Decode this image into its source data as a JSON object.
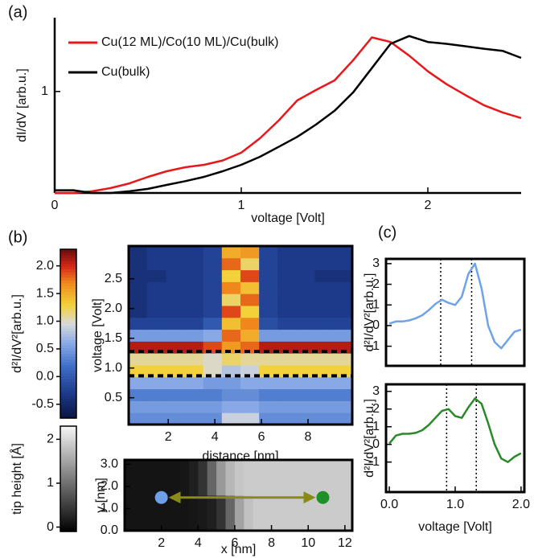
{
  "chart_data": [
    {
      "type": "line",
      "label": "(a)",
      "x_label": "voltage [Volt]",
      "y_label": "dI/dV [arb.u.]",
      "y_scale": "log",
      "x": [
        0,
        0.1,
        0.2,
        0.3,
        0.4,
        0.5,
        0.6,
        0.7,
        0.8,
        0.9,
        1.0,
        1.1,
        1.2,
        1.3,
        1.4,
        1.5,
        1.6,
        1.7,
        1.8,
        1.9,
        2.0,
        2.1,
        2.2,
        2.3,
        2.4,
        2.5
      ],
      "series": [
        {
          "name": "Cu(12 ML)/Co(10 ML)/Cu(bulk)",
          "color": "#e8171b",
          "values": [
            0.3,
            0.3,
            0.306,
            0.318,
            0.336,
            0.363,
            0.388,
            0.407,
            0.419,
            0.441,
            0.484,
            0.574,
            0.708,
            0.899,
            1.017,
            1.14,
            1.45,
            1.9,
            1.8,
            1.53,
            1.27,
            1.09,
            0.96,
            0.85,
            0.78,
            0.73
          ]
        },
        {
          "name": "Cu(bulk)",
          "color": "#000000",
          "values": [
            0.31,
            0.31,
            0.3,
            0.3,
            0.306,
            0.315,
            0.33,
            0.345,
            0.363,
            0.388,
            0.419,
            0.461,
            0.518,
            0.584,
            0.675,
            0.795,
            0.99,
            1.32,
            1.76,
            1.93,
            1.8,
            1.76,
            1.71,
            1.66,
            1.62,
            1.49
          ]
        }
      ],
      "xlim": [
        0,
        2.5
      ],
      "ylim": [
        0.3,
        2.4
      ],
      "xticks": [
        0,
        1,
        2
      ],
      "yticks": [
        1
      ],
      "legend": "upper left"
    },
    {
      "type": "heatmap",
      "label": "(b)",
      "x_label": "distance [nm]",
      "y_label": "voltage [Volt]",
      "x": [
        0.7,
        1.5,
        2.3,
        3.1,
        3.9,
        4.7,
        5.5,
        6.3,
        7.1,
        7.9,
        8.7,
        9.5
      ],
      "y": [
        0.15,
        0.35,
        0.55,
        0.75,
        0.95,
        1.15,
        1.35,
        1.55,
        1.75,
        1.95,
        2.15,
        2.35,
        2.55,
        2.75,
        2.95
      ],
      "z": [
        [
          0.4,
          0.4,
          0.4,
          0.4,
          0.4,
          0.9,
          0.9,
          0.4,
          0.4,
          0.4,
          0.4,
          0.4
        ],
        [
          0.5,
          0.5,
          0.5,
          0.5,
          0.5,
          0.6,
          0.6,
          0.5,
          0.5,
          0.5,
          0.5,
          0.5
        ],
        [
          0.3,
          0.3,
          0.3,
          0.3,
          0.3,
          0.4,
          0.4,
          0.3,
          0.3,
          0.3,
          0.3,
          0.3
        ],
        [
          0.6,
          0.6,
          0.6,
          0.6,
          0.5,
          0.5,
          0.6,
          0.6,
          0.6,
          0.6,
          0.6,
          0.6
        ],
        [
          1.3,
          1.3,
          1.3,
          1.3,
          1.0,
          0.8,
          0.9,
          1.3,
          1.3,
          1.3,
          1.3,
          1.3
        ],
        [
          1.1,
          1.1,
          1.1,
          1.1,
          1.0,
          1.2,
          1.1,
          1.1,
          1.1,
          1.1,
          1.1,
          1.1
        ],
        [
          2.1,
          2.1,
          2.1,
          2.1,
          1.9,
          1.6,
          1.8,
          2.1,
          2.1,
          2.1,
          2.1,
          2.1
        ],
        [
          0.5,
          0.5,
          0.5,
          0.5,
          0.6,
          1.8,
          1.5,
          0.5,
          0.5,
          0.5,
          0.5,
          0.5
        ],
        [
          -0.2,
          -0.2,
          -0.2,
          -0.2,
          0.0,
          1.4,
          1.7,
          -0.1,
          -0.2,
          -0.2,
          -0.2,
          -0.2
        ],
        [
          -0.4,
          -0.3,
          -0.3,
          -0.3,
          -0.2,
          1.9,
          1.3,
          -0.2,
          -0.3,
          -0.3,
          -0.3,
          -0.3
        ],
        [
          -0.4,
          -0.3,
          -0.3,
          -0.3,
          -0.2,
          1.2,
          1.8,
          -0.2,
          -0.3,
          -0.3,
          -0.3,
          -0.3
        ],
        [
          -0.4,
          -0.3,
          -0.3,
          -0.3,
          -0.2,
          1.7,
          1.4,
          -0.2,
          -0.3,
          -0.3,
          -0.3,
          -0.3
        ],
        [
          -0.4,
          -0.4,
          -0.3,
          -0.3,
          -0.2,
          1.3,
          1.9,
          -0.2,
          -0.3,
          -0.3,
          -0.4,
          -0.4
        ],
        [
          -0.4,
          -0.3,
          -0.3,
          -0.3,
          -0.2,
          1.8,
          1.2,
          -0.2,
          -0.3,
          -0.3,
          -0.3,
          -0.3
        ],
        [
          -0.4,
          -0.3,
          -0.3,
          -0.3,
          -0.2,
          1.5,
          1.6,
          -0.2,
          -0.3,
          -0.3,
          -0.3,
          -0.3
        ]
      ],
      "xlim": [
        0.3,
        9.9
      ],
      "ylim": [
        0.05,
        3.05
      ],
      "xticks": [
        2,
        4,
        6,
        8
      ],
      "yticks": [
        0.5,
        {
          "value": 1,
          "label": "1.0"
        },
        1.5,
        {
          "value": 2,
          "label": "2.0"
        },
        2.5
      ],
      "hlines": [
        1.28,
        0.87
      ],
      "colorbar": {
        "label": "d²I/dV²[arb.u.]",
        "ylim": [
          -0.75,
          2.3
        ],
        "yticks": [
          -0.5,
          {
            "value": 0,
            "label": "0.0"
          },
          0.5,
          {
            "value": 1,
            "label": "1.0"
          },
          1.5,
          {
            "value": 2,
            "label": "2.0"
          }
        ]
      }
    },
    {
      "type": "heatmap",
      "x_label": "x [nm]",
      "y_label": "y [nm]",
      "x": [
        0.25,
        0.75,
        1.25,
        1.75,
        2.25,
        2.75,
        3.25,
        3.75,
        4.25,
        4.75,
        5.25,
        5.75,
        6.25,
        6.75,
        7.25,
        7.75,
        8.25,
        8.75,
        9.25,
        9.75,
        10.25,
        10.75,
        11.25,
        11.75,
        12.25
      ],
      "y": [
        0.8,
        2.4
      ],
      "z": [
        [
          0.1,
          0.1,
          0.1,
          0.1,
          0.1,
          0.1,
          0.1,
          0.12,
          0.15,
          0.2,
          0.4,
          0.9,
          1.5,
          1.8,
          1.9,
          1.9,
          1.9,
          1.9,
          1.9,
          1.9,
          1.9,
          1.9,
          1.9,
          1.9,
          1.9
        ],
        [
          0.1,
          0.1,
          0.1,
          0.1,
          0.1,
          0.1,
          0.12,
          0.2,
          0.4,
          0.9,
          1.4,
          1.7,
          1.85,
          1.9,
          1.9,
          1.9,
          1.9,
          1.9,
          1.9,
          1.9,
          1.9,
          1.9,
          1.9,
          1.9,
          1.9
        ]
      ],
      "xlim": [
        0,
        12.4
      ],
      "ylim": [
        0,
        3.2
      ],
      "xticks": [
        2,
        4,
        6,
        8,
        10,
        12
      ],
      "yticks": [
        {
          "value": 0,
          "label": "0.0"
        },
        {
          "value": 1,
          "label": "1.0"
        },
        {
          "value": 2,
          "label": "2.0"
        },
        {
          "value": 3,
          "label": "3.0"
        }
      ],
      "markers": [
        {
          "x": 2,
          "y": 1.5,
          "color": "#6f9fe6"
        },
        {
          "x": 10.8,
          "y": 1.5,
          "color": "#1f8f2a"
        }
      ],
      "colorbar": {
        "label": "tip height [Å]",
        "ylim": [
          -0.1,
          2.3
        ],
        "yticks": [
          0,
          1,
          2
        ]
      }
    },
    {
      "type": "line",
      "label": "(c)",
      "y_label": "d²I/dV²[arb.u.]",
      "x": [
        0,
        0.1,
        0.2,
        0.3,
        0.4,
        0.5,
        0.6,
        0.7,
        0.8,
        0.9,
        1.0,
        1.1,
        1.2,
        1.3,
        1.4,
        1.5,
        1.6,
        1.7,
        1.8,
        1.9,
        2.0
      ],
      "series": [
        {
          "color": "#6fa3e8",
          "values": [
            0.1,
            0.2,
            0.2,
            0.25,
            0.35,
            0.5,
            0.75,
            1.05,
            1.25,
            1.1,
            1.0,
            1.4,
            2.5,
            3.0,
            1.8,
            0.0,
            -0.8,
            -1.1,
            -0.7,
            -0.3,
            -0.2
          ]
        }
      ],
      "xlim": [
        -0.05,
        2.05
      ],
      "ylim": [
        -1.95,
        3.23
      ],
      "yticks": [
        -1,
        0,
        1,
        2,
        3
      ],
      "vlines": [
        0.78,
        1.25
      ]
    },
    {
      "type": "line",
      "x_label": "voltage [Volt]",
      "y_label": "d²I/dV²[arb.u.]",
      "x": [
        0,
        0.1,
        0.2,
        0.3,
        0.4,
        0.5,
        0.6,
        0.7,
        0.8,
        0.9,
        1.0,
        1.1,
        1.2,
        1.3,
        1.4,
        1.5,
        1.6,
        1.7,
        1.8,
        1.9,
        2.0
      ],
      "series": [
        {
          "color": "#2a8a2a",
          "values": [
            0.05,
            0.5,
            0.6,
            0.6,
            0.65,
            0.8,
            1.1,
            1.5,
            1.9,
            2.0,
            1.6,
            1.5,
            2.1,
            2.6,
            2.3,
            1.2,
            0.0,
            -0.8,
            -1.0,
            -0.7,
            -0.5
          ]
        }
      ],
      "xlim": [
        -0.05,
        2.05
      ],
      "ylim": [
        -2.7,
        3.4
      ],
      "yticks": [
        -1,
        0,
        1,
        2,
        3
      ],
      "xticks": [
        {
          "value": 0,
          "label": "0.0"
        },
        {
          "value": 1,
          "label": "1.0"
        },
        {
          "value": 2,
          "label": "2.0"
        }
      ],
      "vlines": [
        0.87,
        1.32
      ]
    }
  ]
}
